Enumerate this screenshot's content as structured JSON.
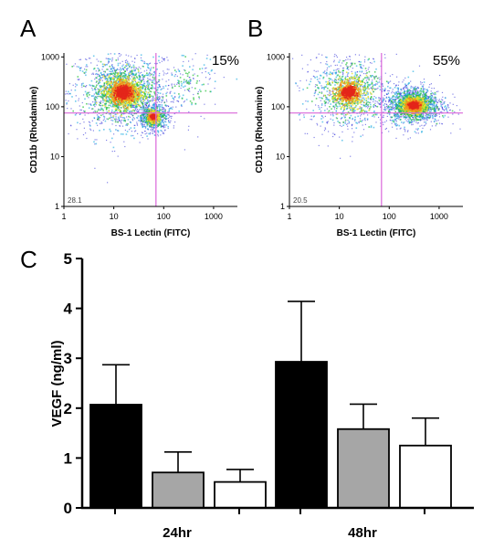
{
  "chart_data": [
    {
      "type": "scatter",
      "panel": "A",
      "percent_label": "15%",
      "corner_label": "28.1",
      "xlabel": "BS-1 Lectin (FITC)",
      "ylabel": "CD11b (Rhodamine)",
      "x_scale": "log",
      "y_scale": "log",
      "xlim": [
        1,
        3000
      ],
      "ylim": [
        1,
        1200
      ],
      "x_ticks": [
        "1",
        "10",
        "100",
        "1000"
      ],
      "y_ticks": [
        "1000",
        "100",
        "10",
        "1"
      ],
      "gates": {
        "x": 70,
        "y": 75
      },
      "populations": [
        {
          "x": 15,
          "y": 200,
          "spread_x": 0.55,
          "spread_y": 0.45,
          "weight": 1.0
        },
        {
          "x": 60,
          "y": 65,
          "spread_x": 0.18,
          "spread_y": 0.16,
          "weight": 0.35
        },
        {
          "x": 300,
          "y": 300,
          "spread_x": 0.35,
          "spread_y": 0.35,
          "weight": 0.08
        }
      ],
      "colors": {
        "gate": "#d966d9",
        "low": "#1f1fd6",
        "mid": "#27c23b",
        "high": "#e3261b"
      }
    },
    {
      "type": "scatter",
      "panel": "B",
      "percent_label": "55%",
      "corner_label": "20.5",
      "xlabel": "BS-1 Lectin (FITC)",
      "ylabel": "CD11b (Rhodamine)",
      "x_scale": "log",
      "y_scale": "log",
      "xlim": [
        1,
        3000
      ],
      "ylim": [
        1,
        1200
      ],
      "x_ticks": [
        "1",
        "10",
        "100",
        "1000"
      ],
      "y_ticks": [
        "1000",
        "100",
        "10",
        "1"
      ],
      "gates": {
        "x": 70,
        "y": 75
      },
      "populations": [
        {
          "x": 15,
          "y": 200,
          "spread_x": 0.5,
          "spread_y": 0.45,
          "weight": 0.55
        },
        {
          "x": 300,
          "y": 110,
          "spread_x": 0.33,
          "spread_y": 0.22,
          "weight": 1.0
        }
      ],
      "colors": {
        "gate": "#d966d9",
        "low": "#1f1fd6",
        "mid": "#27c23b",
        "high": "#e3261b"
      }
    },
    {
      "type": "bar",
      "panel": "C",
      "ylabel": "VEGF (ng/ml)",
      "ylim": [
        0,
        5
      ],
      "y_ticks": [
        "0",
        "1",
        "2",
        "3",
        "4",
        "5"
      ],
      "categories": [
        "24hr",
        "48hr"
      ],
      "series": [
        {
          "values": [
            2.07,
            2.93
          ],
          "errors": [
            0.8,
            1.21
          ],
          "color": "#000000"
        },
        {
          "values": [
            0.71,
            1.58
          ],
          "errors": [
            0.41,
            0.5
          ],
          "color": "#a6a6a6"
        },
        {
          "values": [
            0.52,
            1.25
          ],
          "errors": [
            0.25,
            0.55
          ],
          "color": "#ffffff"
        }
      ]
    }
  ]
}
